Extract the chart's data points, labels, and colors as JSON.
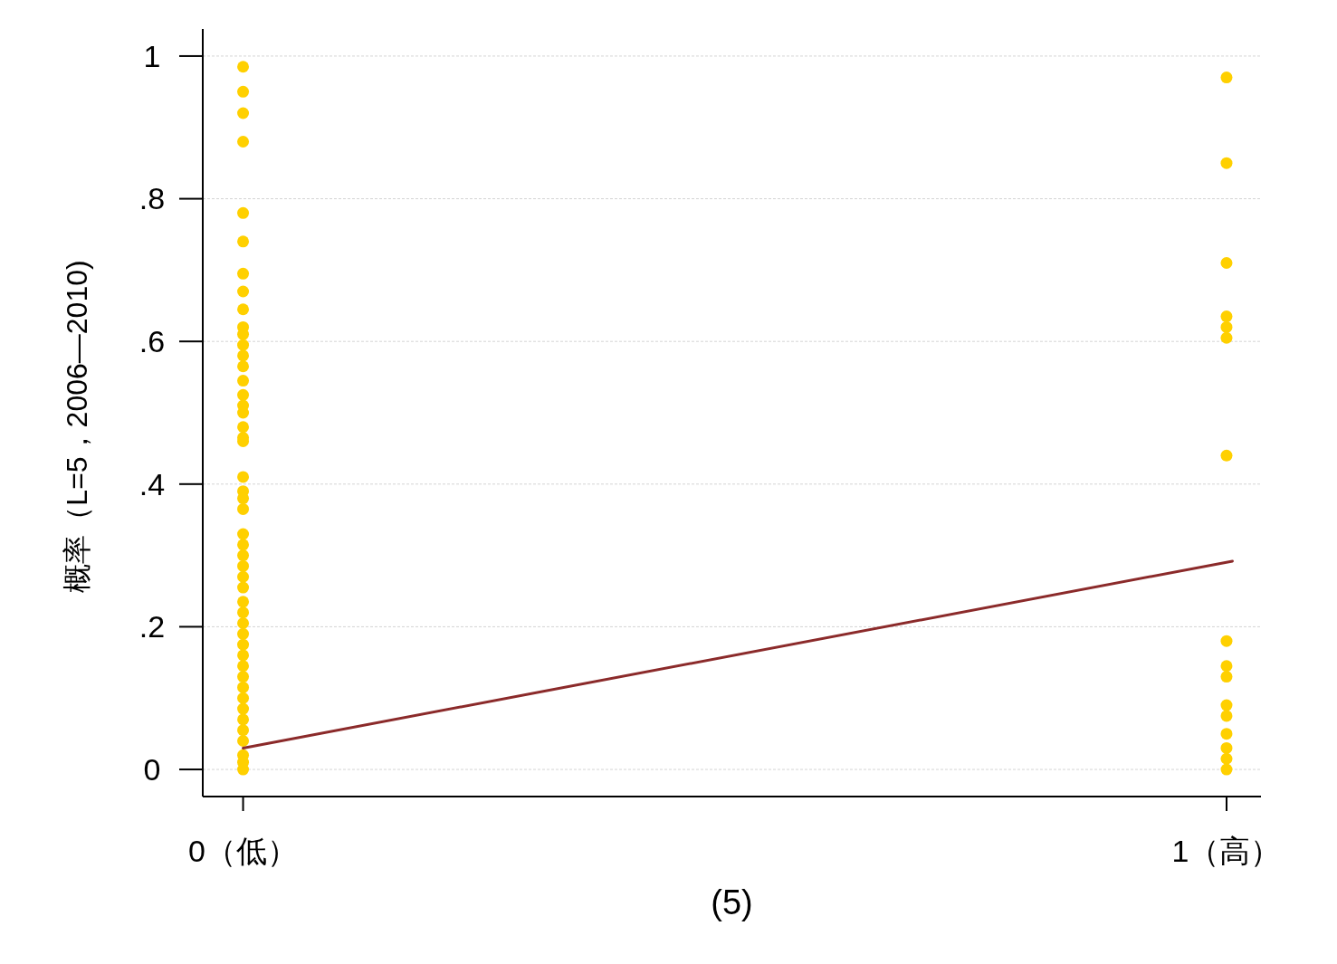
{
  "chart_data": {
    "type": "scatter",
    "xlabel": "(5)",
    "ylabel": "概率（L=5，2006—2010)",
    "xlim": [
      -0.041,
      1.035
    ],
    "ylim": [
      -0.038,
      1.038
    ],
    "xticks": [
      {
        "value": 0,
        "label": "0（低）"
      },
      {
        "value": 1,
        "label": "1（高）"
      }
    ],
    "yticks": [
      {
        "value": 0,
        "label": "0"
      },
      {
        "value": 0.2,
        "label": ".2"
      },
      {
        "value": 0.4,
        "label": ".4"
      },
      {
        "value": 0.6,
        "label": ".6"
      },
      {
        "value": 0.8,
        "label": ".8"
      },
      {
        "value": 1,
        "label": "1"
      }
    ],
    "grid": "y",
    "marker": "circle",
    "series": [
      {
        "color": "#ffd000",
        "x": [
          0,
          0,
          0,
          0,
          0,
          0,
          0,
          0,
          0,
          0,
          0,
          0,
          0,
          0,
          0,
          0,
          0,
          0,
          0,
          0,
          0,
          0,
          0,
          0,
          0,
          0,
          0,
          0,
          0,
          0,
          0,
          0,
          0,
          0,
          0,
          0,
          0,
          0,
          0,
          0,
          0,
          0,
          0,
          0,
          0,
          0,
          0,
          0,
          1,
          1,
          1,
          1,
          1,
          1,
          1,
          1,
          1,
          1,
          1,
          1,
          1,
          1,
          1,
          1
        ],
        "values": [
          0.985,
          0.95,
          0.92,
          0.88,
          0.78,
          0.74,
          0.695,
          0.67,
          0.645,
          0.62,
          0.61,
          0.595,
          0.58,
          0.565,
          0.545,
          0.525,
          0.51,
          0.5,
          0.48,
          0.465,
          0.46,
          0.41,
          0.39,
          0.38,
          0.365,
          0.33,
          0.315,
          0.3,
          0.285,
          0.27,
          0.255,
          0.235,
          0.22,
          0.205,
          0.19,
          0.175,
          0.16,
          0.145,
          0.13,
          0.115,
          0.1,
          0.085,
          0.07,
          0.055,
          0.04,
          0.02,
          0.01,
          0,
          0.97,
          0.85,
          0.71,
          0.635,
          0.62,
          0.605,
          0.44,
          0.18,
          0.145,
          0.13,
          0.09,
          0.075,
          0.05,
          0.03,
          0.015,
          0
        ]
      },
      {
        "type": "line",
        "marker": "none",
        "color": "#8b2a2a",
        "x": [
          0,
          1.006
        ],
        "values": [
          0.03,
          0.292
        ]
      }
    ]
  }
}
